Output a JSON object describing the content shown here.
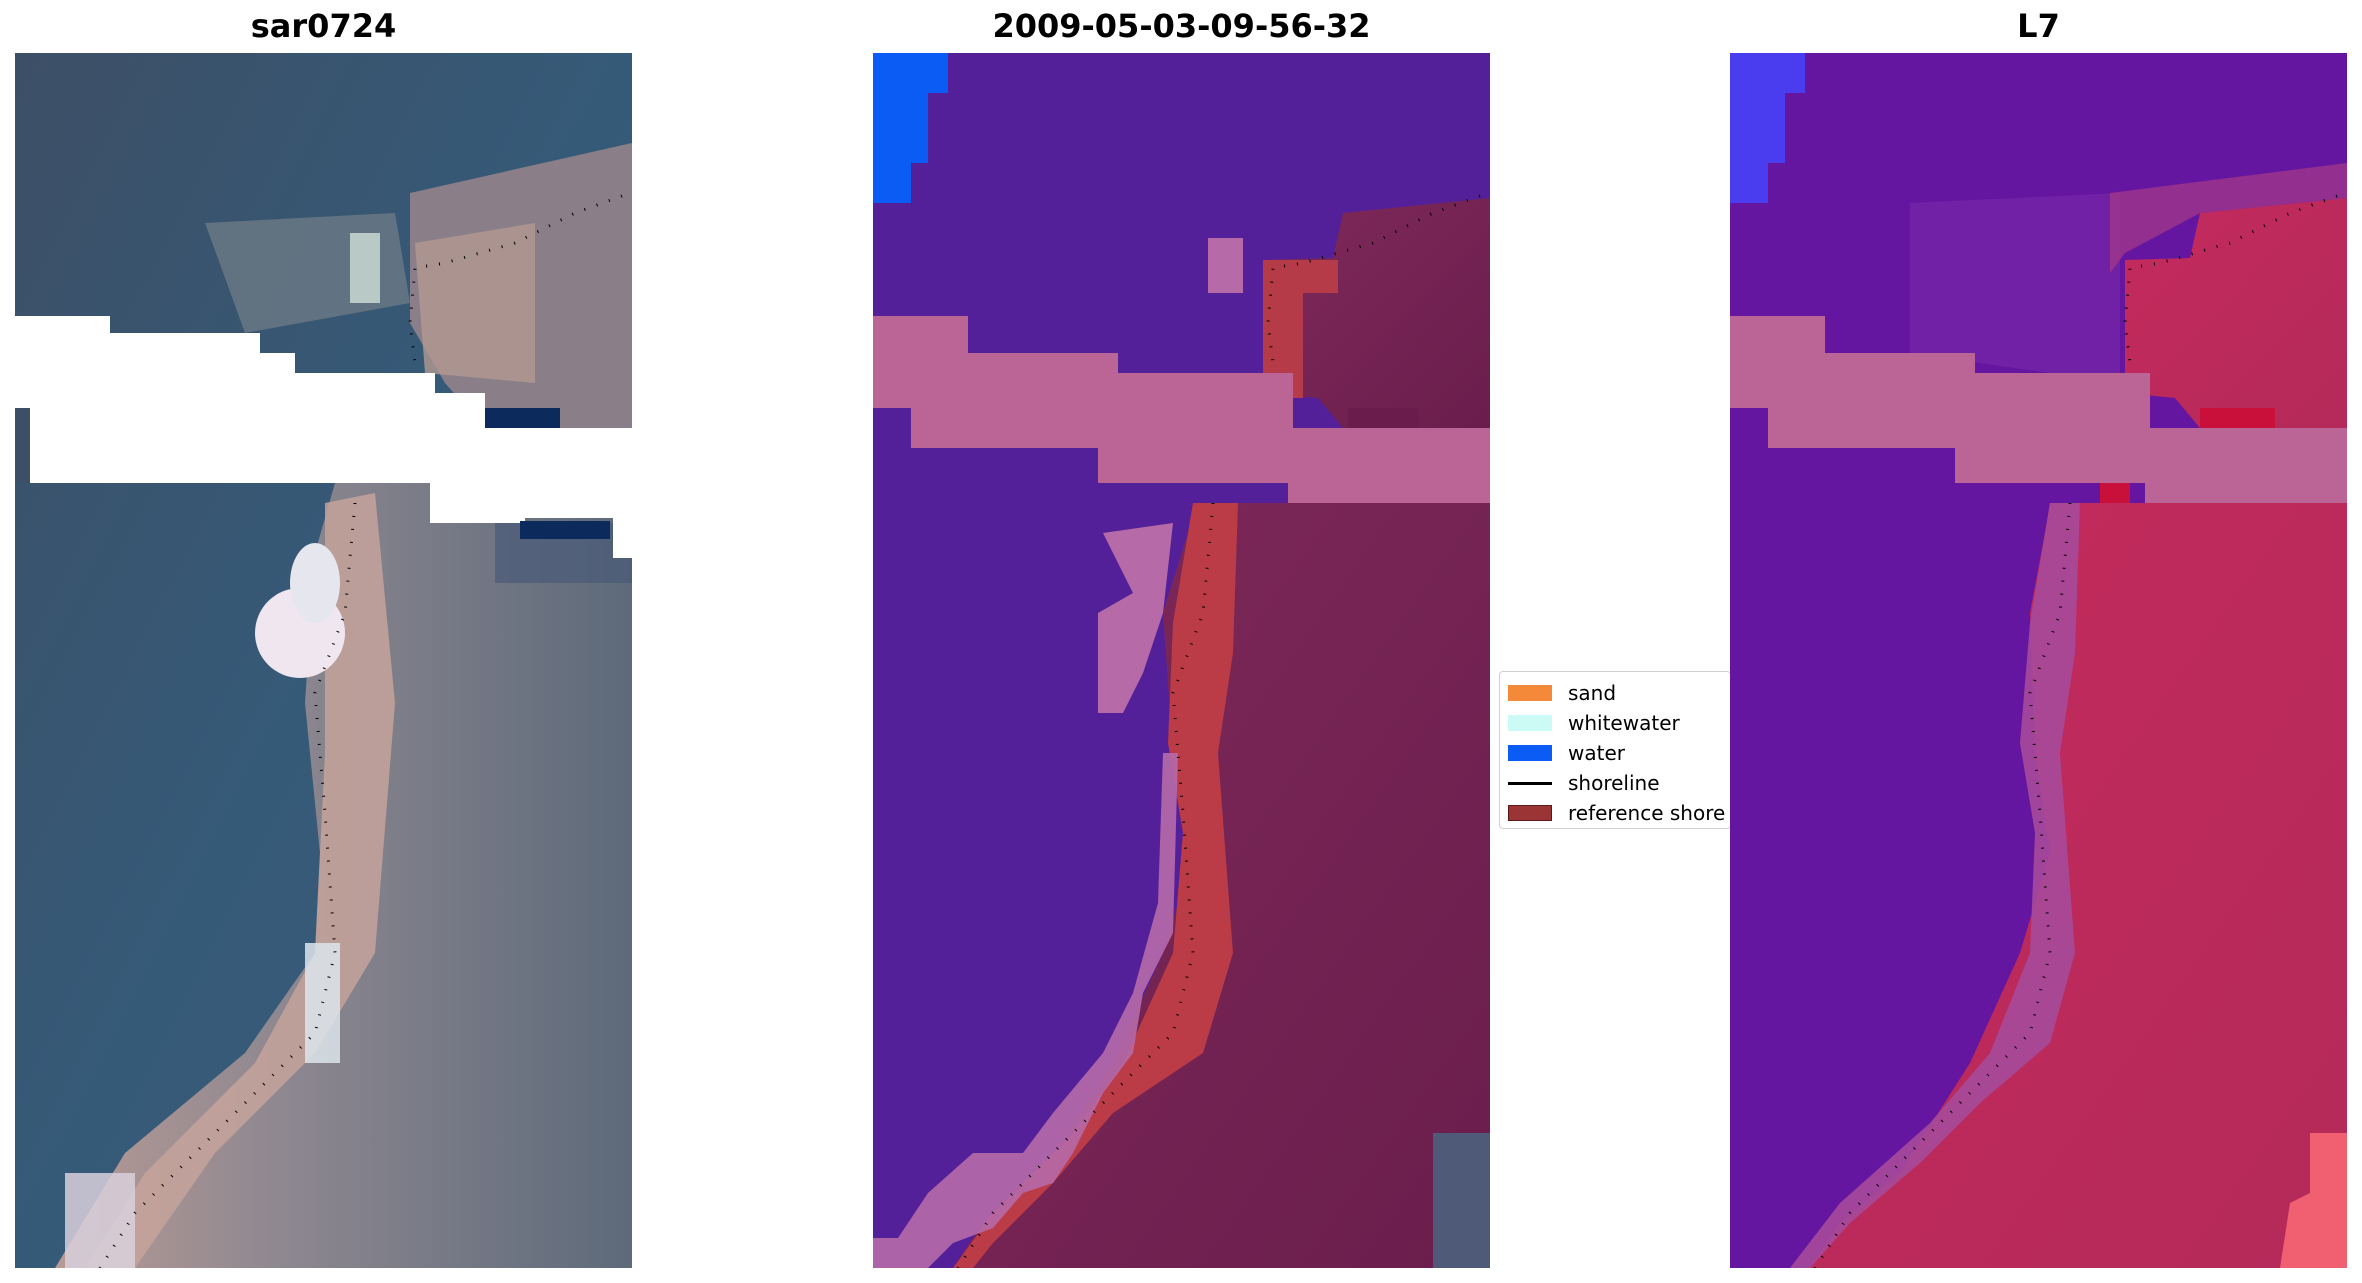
{
  "panels": [
    {
      "title": "sar0724"
    },
    {
      "title": "2009-05-03-09-56-32"
    },
    {
      "title": "L7"
    }
  ],
  "legend": {
    "items": [
      {
        "label": "sand",
        "color": "#f5893a"
      },
      {
        "label": "whitewater",
        "color": "#ccfaf4"
      },
      {
        "label": "water",
        "color": "#0a5cf5"
      },
      {
        "label": "shoreline",
        "color": "#000000"
      },
      {
        "label": "reference shore",
        "color": "#9b3434"
      }
    ]
  }
}
